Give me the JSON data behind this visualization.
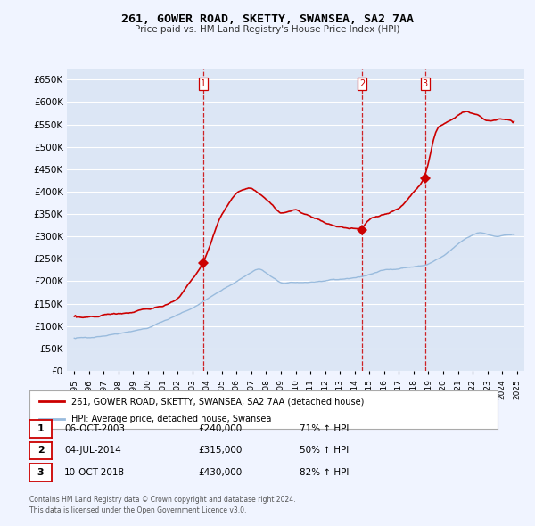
{
  "title": "261, GOWER ROAD, SKETTY, SWANSEA, SA2 7AA",
  "subtitle": "Price paid vs. HM Land Registry's House Price Index (HPI)",
  "legend_label_red": "261, GOWER ROAD, SKETTY, SWANSEA, SA2 7AA (detached house)",
  "legend_label_blue": "HPI: Average price, detached house, Swansea",
  "footer1": "Contains HM Land Registry data © Crown copyright and database right 2024.",
  "footer2": "This data is licensed under the Open Government Licence v3.0.",
  "transactions": [
    {
      "num": 1,
      "date": "06-OCT-2003",
      "price": "£240,000",
      "change": "71% ↑ HPI",
      "x_year": 2003.77
    },
    {
      "num": 2,
      "date": "04-JUL-2014",
      "price": "£315,000",
      "change": "50% ↑ HPI",
      "x_year": 2014.5
    },
    {
      "num": 3,
      "date": "10-OCT-2018",
      "price": "£430,000",
      "change": "82% ↑ HPI",
      "x_year": 2018.78
    }
  ],
  "transaction_values": [
    240000,
    315000,
    430000
  ],
  "hpi_anchors_x": [
    1995.0,
    1997.0,
    2000.0,
    2003.0,
    2004.77,
    2007.5,
    2009.0,
    2012.0,
    2014.5,
    2016.0,
    2018.78,
    2020.0,
    2021.5,
    2022.5,
    2023.5,
    2024.8
  ],
  "hpi_anchors_y": [
    72000,
    78000,
    95000,
    140000,
    175000,
    230000,
    195000,
    200000,
    210000,
    225000,
    235000,
    255000,
    295000,
    310000,
    300000,
    305000
  ],
  "prop_anchors_x": [
    1995.0,
    1996.0,
    1997.0,
    1998.0,
    1999.0,
    2000.0,
    2001.0,
    2002.0,
    2003.77,
    2004.5,
    2005.0,
    2006.0,
    2007.0,
    2008.0,
    2009.0,
    2010.0,
    2011.0,
    2012.0,
    2013.0,
    2014.5,
    2015.0,
    2016.0,
    2017.0,
    2018.78,
    2019.5,
    2020.5,
    2021.5,
    2022.5,
    2023.0,
    2024.0,
    2024.8
  ],
  "prop_anchors_y": [
    120000,
    118000,
    125000,
    128000,
    130000,
    138000,
    145000,
    160000,
    240000,
    310000,
    350000,
    400000,
    410000,
    385000,
    350000,
    360000,
    345000,
    330000,
    320000,
    315000,
    340000,
    350000,
    360000,
    430000,
    540000,
    560000,
    580000,
    570000,
    555000,
    565000,
    555000
  ],
  "ylim": [
    0,
    675000
  ],
  "yticks": [
    0,
    50000,
    100000,
    150000,
    200000,
    250000,
    300000,
    350000,
    400000,
    450000,
    500000,
    550000,
    600000,
    650000
  ],
  "xlim_min": 1994.5,
  "xlim_max": 2025.5,
  "background_color": "#f0f4ff",
  "plot_bg": "#dce6f5",
  "red_color": "#cc0000",
  "blue_color": "#99bbdd",
  "vline_color": "#cc0000",
  "grid_color": "#ffffff"
}
